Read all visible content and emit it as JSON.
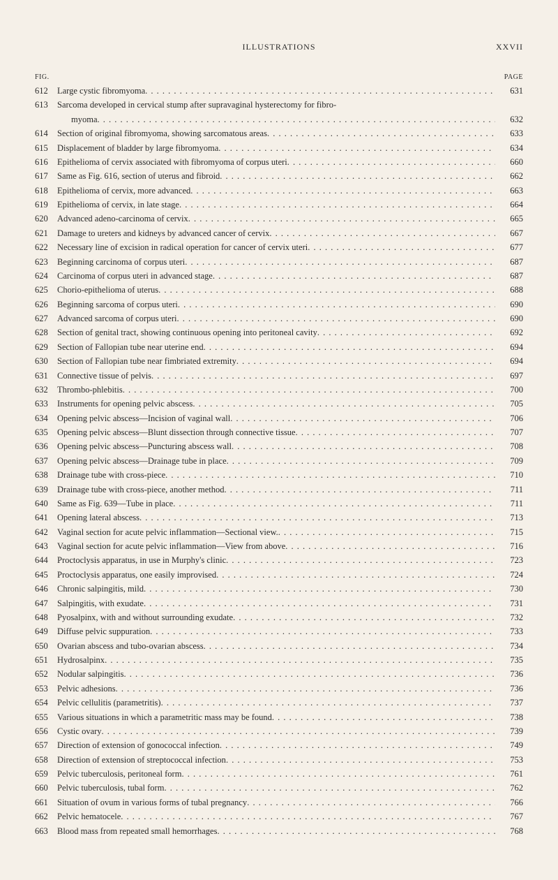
{
  "header": {
    "center": "ILLUSTRATIONS",
    "right": "XXVII"
  },
  "column_labels": {
    "left": "FIG.",
    "right": "PAGE"
  },
  "entries": [
    {
      "fig": "612",
      "desc": "Large cystic fibromyoma",
      "page": "631"
    },
    {
      "fig": "613",
      "desc": "Sarcoma developed in cervical stump after supravaginal hysterectomy for fibro-",
      "cont": "myoma",
      "page": "632"
    },
    {
      "fig": "614",
      "desc": "Section of original fibromyoma, showing sarcomatous areas",
      "page": "633"
    },
    {
      "fig": "615",
      "desc": "Displacement of bladder by large fibromyoma",
      "page": "634"
    },
    {
      "fig": "616",
      "desc": "Epithelioma of cervix associated with fibromyoma of corpus uteri",
      "page": "660"
    },
    {
      "fig": "617",
      "desc": "Same as Fig. 616, section of uterus and fibroid",
      "page": "662"
    },
    {
      "fig": "618",
      "desc": "Epithelioma of cervix, more advanced",
      "page": "663"
    },
    {
      "fig": "619",
      "desc": "Epithelioma of cervix, in late stage",
      "page": "664"
    },
    {
      "fig": "620",
      "desc": "Advanced adeno-carcinoma of cervix",
      "page": "665"
    },
    {
      "fig": "621",
      "desc": "Damage to ureters and kidneys by advanced cancer of cervix",
      "page": "667"
    },
    {
      "fig": "622",
      "desc": "Necessary line of excision in radical operation for cancer of cervix uteri",
      "page": "677"
    },
    {
      "fig": "623",
      "desc": "Beginning carcinoma of corpus uteri",
      "page": "687"
    },
    {
      "fig": "624",
      "desc": "Carcinoma of corpus uteri in advanced stage",
      "page": "687"
    },
    {
      "fig": "625",
      "desc": "Chorio-epithelioma of uterus",
      "page": "688"
    },
    {
      "fig": "626",
      "desc": "Beginning sarcoma of corpus uteri",
      "page": "690"
    },
    {
      "fig": "627",
      "desc": "Advanced sarcoma of corpus uteri",
      "page": "690"
    },
    {
      "fig": "628",
      "desc": "Section of genital tract, showing continuous opening into peritoneal cavity",
      "page": "692"
    },
    {
      "fig": "629",
      "desc": "Section of Fallopian tube near uterine end",
      "page": "694"
    },
    {
      "fig": "630",
      "desc": "Section of Fallopian tube near fimbriated extremity",
      "page": "694"
    },
    {
      "fig": "631",
      "desc": "Connective tissue of pelvis",
      "page": "697"
    },
    {
      "fig": "632",
      "desc": "Thrombo-phlebitis",
      "page": "700"
    },
    {
      "fig": "633",
      "desc": "Instruments for opening pelvic abscess",
      "page": "705"
    },
    {
      "fig": "634",
      "desc": "Opening pelvic abscess—Incision of vaginal wall",
      "page": "706"
    },
    {
      "fig": "635",
      "desc": "Opening pelvic abscess—Blunt dissection through connective tissue",
      "page": "707"
    },
    {
      "fig": "636",
      "desc": "Opening pelvic abscess—Puncturing abscess wall",
      "page": "708"
    },
    {
      "fig": "637",
      "desc": "Opening pelvic abscess—Drainage tube in place",
      "page": "709"
    },
    {
      "fig": "638",
      "desc": "Drainage tube with cross-piece",
      "page": "710"
    },
    {
      "fig": "639",
      "desc": "Drainage tube with cross-piece, another method",
      "page": "711"
    },
    {
      "fig": "640",
      "desc": "Same as Fig. 639—Tube in place",
      "page": "711"
    },
    {
      "fig": "641",
      "desc": "Opening lateral abscess",
      "page": "713"
    },
    {
      "fig": "642",
      "desc": "Vaginal section for acute pelvic inflammation—Sectional view.",
      "page": "715"
    },
    {
      "fig": "643",
      "desc": "Vaginal section for acute pelvic inflammation—View from above",
      "page": "716"
    },
    {
      "fig": "644",
      "desc": "Proctoclysis apparatus, in use in Murphy's clinic",
      "page": "723"
    },
    {
      "fig": "645",
      "desc": "Proctoclysis apparatus, one easily improvised",
      "page": "724"
    },
    {
      "fig": "646",
      "desc": "Chronic salpingitis, mild",
      "page": "730"
    },
    {
      "fig": "647",
      "desc": "Salpingitis, with exudate",
      "page": "731"
    },
    {
      "fig": "648",
      "desc": "Pyosalpinx, with and without surrounding exudate",
      "page": "732"
    },
    {
      "fig": "649",
      "desc": "Diffuse pelvic suppuration",
      "page": "733"
    },
    {
      "fig": "650",
      "desc": "Ovarian abscess and tubo-ovarian abscess",
      "page": "734"
    },
    {
      "fig": "651",
      "desc": "Hydrosalpinx",
      "page": "735"
    },
    {
      "fig": "652",
      "desc": "Nodular salpingitis",
      "page": "736"
    },
    {
      "fig": "653",
      "desc": "Pelvic adhesions",
      "page": "736"
    },
    {
      "fig": "654",
      "desc": "Pelvic cellulitis (parametritis)",
      "page": "737"
    },
    {
      "fig": "655",
      "desc": "Various situations in which a parametritic mass may be found",
      "page": "738"
    },
    {
      "fig": "656",
      "desc": "Cystic ovary",
      "page": "739"
    },
    {
      "fig": "657",
      "desc": "Direction of extension of gonococcal infection",
      "page": "749"
    },
    {
      "fig": "658",
      "desc": "Direction of extension of streptococcal infection",
      "page": "753"
    },
    {
      "fig": "659",
      "desc": "Pelvic tuberculosis, peritoneal form",
      "page": "761"
    },
    {
      "fig": "660",
      "desc": "Pelvic tuberculosis, tubal form",
      "page": "762"
    },
    {
      "fig": "661",
      "desc": "Situation of ovum in various forms of tubal pregnancy",
      "page": "766"
    },
    {
      "fig": "662",
      "desc": "Pelvic hematocele",
      "page": "767"
    },
    {
      "fig": "663",
      "desc": "Blood mass from repeated small hemorrhages",
      "page": "768"
    }
  ]
}
